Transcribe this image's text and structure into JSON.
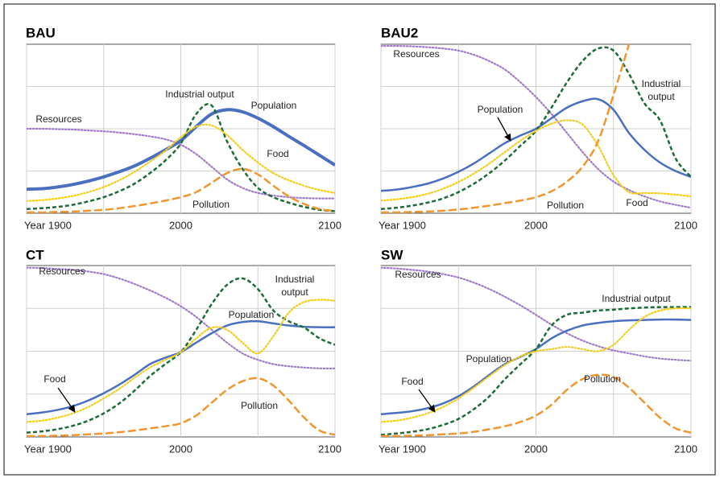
{
  "chart_data": [
    {
      "type": "line",
      "title": "BAU",
      "x": [
        1900,
        1910,
        1920,
        1930,
        1940,
        1950,
        1960,
        1970,
        1980,
        1990,
        2000,
        2010,
        2020,
        2030,
        2040,
        2050,
        2060,
        2070,
        2080,
        2090,
        2100
      ],
      "xlim": [
        1900,
        2100
      ],
      "xticks": [
        {
          "value": 1900,
          "label": "Year 1900"
        },
        {
          "value": 1950,
          "label": null
        },
        2000,
        {
          "value": 2050,
          "label": null
        },
        2100
      ],
      "ylim": [
        0,
        4
      ],
      "yticks": [
        {
          "value": 1,
          "label": null
        },
        {
          "value": 2,
          "label": null
        },
        {
          "value": 3,
          "label": null
        }
      ],
      "grid": true,
      "series": [
        {
          "name": "Resources",
          "color": "#a07cc8",
          "style": "dotted",
          "values": [
            2.0,
            2.0,
            1.99,
            1.98,
            1.96,
            1.94,
            1.91,
            1.87,
            1.82,
            1.75,
            1.62,
            1.4,
            1.1,
            0.8,
            0.6,
            0.48,
            0.42,
            0.38,
            0.36,
            0.35,
            0.35
          ]
        },
        {
          "name": "Population",
          "color": "#4a6fc0",
          "style": "solid",
          "width": 4,
          "values": [
            0.57,
            0.58,
            0.62,
            0.68,
            0.76,
            0.86,
            0.98,
            1.12,
            1.3,
            1.5,
            1.72,
            2.05,
            2.35,
            2.45,
            2.4,
            2.25,
            2.05,
            1.82,
            1.6,
            1.37,
            1.14
          ]
        },
        {
          "name": "Industrial output",
          "color": "#1e6b3a",
          "style": "dashed",
          "values": [
            0.1,
            0.12,
            0.15,
            0.2,
            0.28,
            0.38,
            0.52,
            0.7,
            0.95,
            1.25,
            1.65,
            2.35,
            2.55,
            1.7,
            1.05,
            0.6,
            0.38,
            0.25,
            0.15,
            0.08,
            0.05
          ]
        },
        {
          "name": "Food",
          "color": "#f2cf1f",
          "style": "dotted",
          "values": [
            0.29,
            0.31,
            0.35,
            0.41,
            0.5,
            0.62,
            0.78,
            0.98,
            1.22,
            1.48,
            1.8,
            2.05,
            2.08,
            1.85,
            1.5,
            1.2,
            0.95,
            0.78,
            0.65,
            0.55,
            0.48
          ]
        },
        {
          "name": "Pollution",
          "color": "#f0962e",
          "style": "longdash",
          "values": [
            0.02,
            0.02,
            0.03,
            0.04,
            0.06,
            0.08,
            0.12,
            0.17,
            0.23,
            0.3,
            0.38,
            0.5,
            0.72,
            0.95,
            1.05,
            0.92,
            0.65,
            0.4,
            0.22,
            0.1,
            0.05
          ]
        }
      ]
    },
    {
      "type": "line",
      "title": "BAU2",
      "x": [
        1900,
        1910,
        1920,
        1930,
        1940,
        1950,
        1960,
        1970,
        1980,
        1990,
        2000,
        2010,
        2020,
        2030,
        2040,
        2050,
        2060,
        2070,
        2080,
        2090,
        2100
      ],
      "xlim": [
        1900,
        2100
      ],
      "xticks": [
        {
          "value": 1900,
          "label": "Year 1900"
        },
        {
          "value": 1950,
          "label": null
        },
        2000,
        {
          "value": 2050,
          "label": null
        },
        2100
      ],
      "ylim": [
        0,
        4
      ],
      "yticks": [
        {
          "value": 1,
          "label": null
        },
        {
          "value": 2,
          "label": null
        },
        {
          "value": 3,
          "label": null
        }
      ],
      "grid": true,
      "series": [
        {
          "name": "Resources",
          "color": "#a07cc8",
          "style": "dotted",
          "values": [
            3.96,
            3.96,
            3.95,
            3.93,
            3.9,
            3.85,
            3.75,
            3.6,
            3.4,
            3.1,
            2.75,
            2.35,
            1.9,
            1.45,
            1.05,
            0.75,
            0.55,
            0.4,
            0.28,
            0.2,
            0.13
          ]
        },
        {
          "name": "Population",
          "color": "#4a6fc0",
          "style": "solid",
          "values": [
            0.53,
            0.56,
            0.62,
            0.7,
            0.82,
            0.98,
            1.18,
            1.42,
            1.66,
            1.84,
            2.0,
            2.25,
            2.5,
            2.65,
            2.7,
            2.45,
            1.9,
            1.5,
            1.2,
            1.0,
            0.86
          ]
        },
        {
          "name": "Industrial output",
          "color": "#1e6b3a",
          "style": "dashed",
          "values": [
            0.1,
            0.13,
            0.18,
            0.25,
            0.35,
            0.5,
            0.7,
            0.95,
            1.25,
            1.6,
            1.95,
            2.5,
            3.1,
            3.6,
            3.9,
            3.85,
            3.3,
            2.6,
            2.2,
            1.3,
            0.86
          ]
        },
        {
          "name": "Food",
          "color": "#f2cf1f",
          "style": "dotted",
          "values": [
            0.3,
            0.33,
            0.38,
            0.46,
            0.58,
            0.74,
            0.94,
            1.18,
            1.45,
            1.72,
            1.95,
            2.12,
            2.2,
            2.1,
            1.6,
            0.9,
            0.5,
            0.48,
            0.47,
            0.44,
            0.4
          ]
        },
        {
          "name": "Pollution",
          "color": "#f0962e",
          "style": "longdash",
          "values": [
            0.02,
            0.02,
            0.03,
            0.04,
            0.06,
            0.09,
            0.13,
            0.18,
            0.24,
            0.3,
            0.38,
            0.52,
            0.75,
            1.1,
            1.7,
            2.8,
            4.0,
            null,
            null,
            null,
            null
          ]
        }
      ]
    },
    {
      "type": "line",
      "title": "CT",
      "x": [
        1900,
        1910,
        1920,
        1930,
        1940,
        1950,
        1960,
        1970,
        1980,
        1990,
        2000,
        2010,
        2020,
        2030,
        2040,
        2050,
        2060,
        2070,
        2080,
        2090,
        2100
      ],
      "xlim": [
        1900,
        2100
      ],
      "xticks": [
        {
          "value": 1900,
          "label": "Year 1900"
        },
        {
          "value": 1950,
          "label": null
        },
        2000,
        {
          "value": 2050,
          "label": null
        },
        2100
      ],
      "ylim": [
        0,
        4
      ],
      "yticks": [
        {
          "value": 1,
          "label": null
        },
        {
          "value": 2,
          "label": null
        },
        {
          "value": 3,
          "label": null
        }
      ],
      "grid": true,
      "series": [
        {
          "name": "Resources",
          "color": "#a07cc8",
          "style": "dotted",
          "values": [
            3.95,
            3.94,
            3.92,
            3.9,
            3.86,
            3.8,
            3.7,
            3.57,
            3.42,
            3.25,
            3.05,
            2.8,
            2.5,
            2.2,
            1.95,
            1.8,
            1.7,
            1.65,
            1.62,
            1.6,
            1.6
          ]
        },
        {
          "name": "Population",
          "color": "#4a6fc0",
          "style": "solid",
          "values": [
            0.53,
            0.57,
            0.63,
            0.72,
            0.85,
            1.02,
            1.22,
            1.45,
            1.7,
            1.85,
            1.98,
            2.2,
            2.42,
            2.6,
            2.68,
            2.7,
            2.65,
            2.6,
            2.57,
            2.56,
            2.56
          ]
        },
        {
          "name": "Industrial output",
          "color": "#1e6b3a",
          "style": "dashed",
          "values": [
            0.1,
            0.13,
            0.18,
            0.26,
            0.38,
            0.55,
            0.78,
            1.08,
            1.42,
            1.7,
            1.98,
            2.5,
            3.1,
            3.55,
            3.7,
            3.45,
            2.95,
            2.7,
            2.55,
            2.3,
            2.15
          ]
        },
        {
          "name": "Food",
          "color": "#f2cf1f",
          "style": "dotted",
          "values": [
            0.35,
            0.38,
            0.45,
            0.55,
            0.7,
            0.9,
            1.12,
            1.38,
            1.62,
            1.8,
            1.98,
            2.3,
            2.55,
            2.5,
            2.2,
            1.95,
            2.35,
            2.9,
            3.15,
            3.2,
            3.18
          ]
        },
        {
          "name": "Pollution",
          "color": "#f0962e",
          "style": "longdash",
          "values": [
            0.02,
            0.02,
            0.03,
            0.04,
            0.06,
            0.08,
            0.11,
            0.15,
            0.2,
            0.25,
            0.32,
            0.5,
            0.8,
            1.1,
            1.3,
            1.37,
            1.2,
            0.85,
            0.45,
            0.15,
            0.05
          ]
        }
      ]
    },
    {
      "type": "line",
      "title": "SW",
      "x": [
        1900,
        1910,
        1920,
        1930,
        1940,
        1950,
        1960,
        1970,
        1980,
        1990,
        2000,
        2010,
        2020,
        2030,
        2040,
        2050,
        2060,
        2070,
        2080,
        2090,
        2100
      ],
      "xlim": [
        1900,
        2100
      ],
      "xticks": [
        {
          "value": 1900,
          "label": "Year 1900"
        },
        {
          "value": 1950,
          "label": null
        },
        2000,
        {
          "value": 2050,
          "label": null
        },
        2100
      ],
      "ylim": [
        0,
        4
      ],
      "yticks": [
        {
          "value": 1,
          "label": null
        },
        {
          "value": 2,
          "label": null
        },
        {
          "value": 3,
          "label": null
        }
      ],
      "grid": true,
      "series": [
        {
          "name": "Resources",
          "color": "#a07cc8",
          "style": "dotted",
          "values": [
            3.95,
            3.93,
            3.9,
            3.86,
            3.8,
            3.72,
            3.6,
            3.45,
            3.27,
            3.07,
            2.85,
            2.62,
            2.42,
            2.25,
            2.12,
            2.02,
            1.95,
            1.88,
            1.83,
            1.8,
            1.78
          ]
        },
        {
          "name": "Population",
          "color": "#4a6fc0",
          "style": "solid",
          "values": [
            0.53,
            0.56,
            0.6,
            0.67,
            0.78,
            0.95,
            1.18,
            1.45,
            1.7,
            1.87,
            2.05,
            2.3,
            2.48,
            2.6,
            2.66,
            2.7,
            2.72,
            2.73,
            2.74,
            2.74,
            2.73
          ]
        },
        {
          "name": "Industrial output",
          "color": "#1e6b3a",
          "style": "dashed",
          "values": [
            0.05,
            0.08,
            0.12,
            0.18,
            0.28,
            0.42,
            0.65,
            0.95,
            1.35,
            1.7,
            2.05,
            2.6,
            2.85,
            2.9,
            2.95,
            2.97,
            3.0,
            3.02,
            3.03,
            3.03,
            3.03
          ]
        },
        {
          "name": "Food",
          "color": "#f2cf1f",
          "style": "dotted",
          "values": [
            0.35,
            0.38,
            0.45,
            0.55,
            0.7,
            0.9,
            1.15,
            1.42,
            1.68,
            1.88,
            2.0,
            2.05,
            2.1,
            2.05,
            2.0,
            2.15,
            2.5,
            2.8,
            2.95,
            3.0,
            3.0
          ]
        },
        {
          "name": "Pollution",
          "color": "#f0962e",
          "style": "longdash",
          "values": [
            0.02,
            0.02,
            0.03,
            0.04,
            0.06,
            0.08,
            0.12,
            0.18,
            0.25,
            0.35,
            0.5,
            0.75,
            1.1,
            1.35,
            1.45,
            1.4,
            1.15,
            0.8,
            0.45,
            0.2,
            0.1
          ]
        }
      ]
    }
  ]
}
